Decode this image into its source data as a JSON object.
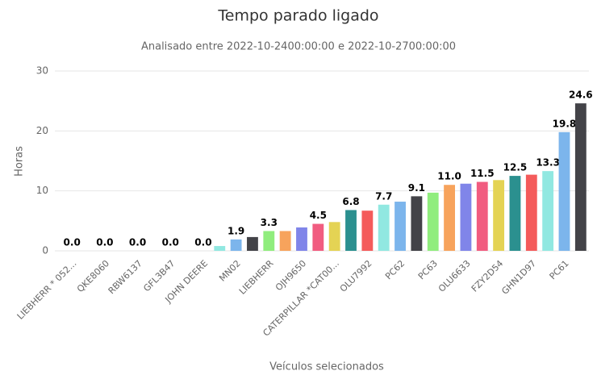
{
  "chart_data": {
    "type": "bar",
    "title": "Tempo parado ligado",
    "subtitle": "Analisado entre 2022-10-2400:00:00 e 2022-10-2700:00:00",
    "y_axis_label": "Horas",
    "x_axis_label": "Veículos selecionados",
    "categories": [
      "LIEBHERR * 052...",
      null,
      "QKE8060",
      null,
      "RBW6137",
      null,
      "GFL3B47",
      null,
      "JOHN DEERE",
      null,
      "MN02",
      null,
      "LIEBHERR",
      null,
      "OJH9650",
      null,
      "CATERPILLAR *CAT00...",
      null,
      "OLU7992",
      null,
      "PC62",
      null,
      "PC63",
      null,
      "OLU6633",
      null,
      "FZY2D54",
      null,
      "GHN1D97",
      null,
      "PC61",
      null
    ],
    "values": [
      0,
      0,
      0,
      0,
      0,
      0,
      0,
      0,
      0,
      0.8,
      1.9,
      2.3,
      3.3,
      3.3,
      3.9,
      4.5,
      4.8,
      6.8,
      6.7,
      7.7,
      8.2,
      9.1,
      9.7,
      11.0,
      11.2,
      11.5,
      11.8,
      12.5,
      12.7,
      13.3,
      19.8,
      24.6
    ],
    "value_labels": [
      "0.0",
      null,
      "0.0",
      null,
      "0.0",
      null,
      "0.0",
      null,
      "0.0",
      null,
      "1.9",
      null,
      "3.3",
      null,
      null,
      "4.5",
      null,
      "6.8",
      null,
      "7.7",
      null,
      "9.1",
      null,
      "11.0",
      null,
      "11.5",
      null,
      "12.5",
      null,
      "13.3",
      "19.8",
      "24.6"
    ],
    "colors": [
      "#7cb5ec",
      "#434348",
      "#90ed7d",
      "#f7a35c",
      "#8085e9",
      "#f15c80",
      "#e4d354",
      "#2b908f",
      "#f45b5b",
      "#91e8e1"
    ],
    "ylim": [
      0,
      30
    ],
    "yticks": [
      0,
      10,
      20,
      30
    ],
    "grid": true
  }
}
